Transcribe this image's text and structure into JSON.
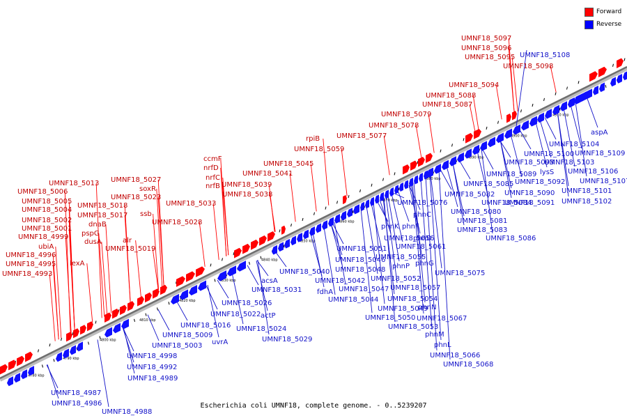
{
  "figure": {
    "caption": "Escherichia coli UMNF18, complete genome. - 0..5239207",
    "legend": [
      {
        "label": "Forward",
        "color": "#ff0000"
      },
      {
        "label": "Reverse",
        "color": "#0000ff"
      }
    ],
    "colors": {
      "forward": "#ff0000",
      "reverse": "#1010ff",
      "forward_text": "#c00000",
      "reverse_text": "#1010c8",
      "backbone": "#7a7a7a"
    }
  },
  "chart_data": {
    "type": "genome-map",
    "region_start": 0,
    "region_end": 5239207,
    "ticks": [
      "4780 kbp",
      "4790 kbp",
      "4800 kbp",
      "4810 kbp",
      "4820 kbp",
      "4830 kbp",
      "4840 kbp",
      "4850 kbp",
      "4860 kbp",
      "4870 kbp",
      "4880 kbp",
      "4890 kbp",
      "4900 kbp",
      "4910 kbp"
    ],
    "forward_labels": [
      "UMNF18_5097",
      "UMNF18_5096",
      "UMNF18_5095",
      "UMNF18_5098",
      "UMNF18_5094",
      "UMNF18_5088",
      "UMNF18_5087",
      "UMNF18_5079",
      "UMNF18_5078",
      "UMNF18_5077",
      "rpiB",
      "UMNF18_5059",
      "ccmF",
      "nrfD",
      "nrfC",
      "nrfB",
      "UMNF18_5038",
      "UMNF18_5045",
      "UMNF18_5041",
      "UMNF18_5039",
      "UMNF18_5033",
      "UMNF18_5027",
      "soxR",
      "UMNF18_5023",
      "ssb",
      "UMNF18_5028",
      "UMNF18_5013",
      "UMNF18_5006",
      "UMNF18_5005",
      "UMNF18_5004",
      "UMNF18_5002",
      "UMNF18_5001",
      "UMNF18_4999",
      "UMNF18_5018",
      "UMNF18_5017",
      "dnaB",
      "pspG",
      "dusA",
      "ubiA",
      "UMNF18_4996",
      "UMNF18_4995",
      "UMNF18_4993",
      "lexA",
      "alr",
      "UMNF18_5019"
    ],
    "reverse_labels": [
      "UMNF18_5108",
      "aspA",
      "UMNF18_5104",
      "UMNF18_5109",
      "UMNF18_5100",
      "UMNF18_5103",
      "UMNF18_5093",
      "UMNF18_5089",
      "lysS",
      "UMNF18_5106",
      "UMNF18_5092",
      "UMNF18_5107",
      "UMNF18_5085",
      "UMNF18_5090",
      "UMNF18_5101",
      "UMNF18_5082",
      "UMNF18_5084",
      "UMNF18_5091",
      "UMNF18_5102",
      "UMNF18_5076",
      "UMNF18_5080",
      "UMNF18_5081",
      "UMNF18_5083",
      "UMNF18_5086",
      "phnC",
      "phnK",
      "phnF",
      "phnD",
      "UMNF18_5056",
      "UMNF18_5061",
      "UMNF18_5051",
      "UMNF18_5055",
      "UMNF18_5046",
      "phnP",
      "phnG",
      "UMNF18_5048",
      "UMNF18_5075",
      "UMNF18_5040",
      "UMNF18_5052",
      "UMNF18_5057",
      "UMNF18_5042",
      "UMNF18_5047",
      "fdhA",
      "UMNF18_5054",
      "UMNF18_5044",
      "phnN",
      "UMNF18_5049",
      "UMNF18_5050",
      "UMNF18_5067",
      "UMNF18_5053",
      "phnM",
      "phnL",
      "UMNF18_5066",
      "UMNF18_5068",
      "acsA",
      "UMNF18_5031",
      "UMNF18_5026",
      "actP",
      "UMNF18_5022",
      "UMNF18_5024",
      "UMNF18_5016",
      "UMNF18_5029",
      "UMNF18_5009",
      "uvrA",
      "UMNF18_5003",
      "UMNF18_4998",
      "UMNF18_4992",
      "UMNF18_4989",
      "UMNF18_4987",
      "UMNF18_4986",
      "UMNF18_4988"
    ]
  }
}
